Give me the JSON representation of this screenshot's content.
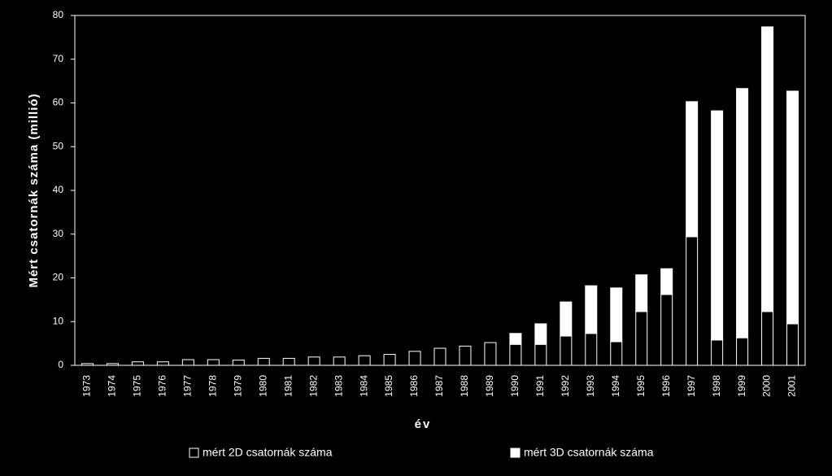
{
  "chart_data": {
    "type": "bar",
    "stacked": true,
    "x_label": "év",
    "y_label": "Mért csatornák száma (millió)",
    "categories": [
      "1973",
      "1974",
      "1975",
      "1976",
      "1977",
      "1978",
      "1979",
      "1980",
      "1981",
      "1982",
      "1983",
      "1984",
      "1985",
      "1986",
      "1987",
      "1988",
      "1989",
      "1990",
      "1991",
      "1992",
      "1993",
      "1994",
      "1995",
      "1996",
      "1997",
      "1998",
      "1999",
      "2000",
      "2001"
    ],
    "series": [
      {
        "name": "mért 2D csatornák száma",
        "color": "#000000",
        "values": [
          0.4,
          0.4,
          0.8,
          0.8,
          1.3,
          1.3,
          1.2,
          1.6,
          1.6,
          1.9,
          1.9,
          2.2,
          2.5,
          3.2,
          3.9,
          4.4,
          5.2,
          4.8,
          4.8,
          6.7,
          7.3,
          5.4,
          12.3,
          16.2,
          29.4,
          5.8,
          6.3,
          12.3,
          9.5
        ]
      },
      {
        "name": "mért 3D csatornák száma",
        "color": "#ffffff",
        "values": [
          0,
          0,
          0,
          0,
          0,
          0,
          0,
          0,
          0,
          0,
          0,
          0,
          0,
          0,
          0,
          0,
          0,
          2.5,
          4.7,
          7.8,
          10.9,
          12.3,
          8.4,
          5.9,
          30.9,
          52.4,
          57.0,
          65.1,
          53.2
        ]
      }
    ],
    "ylim": [
      0,
      80
    ],
    "yticks": [
      0,
      10,
      20,
      30,
      40,
      50,
      60,
      70,
      80
    ]
  }
}
